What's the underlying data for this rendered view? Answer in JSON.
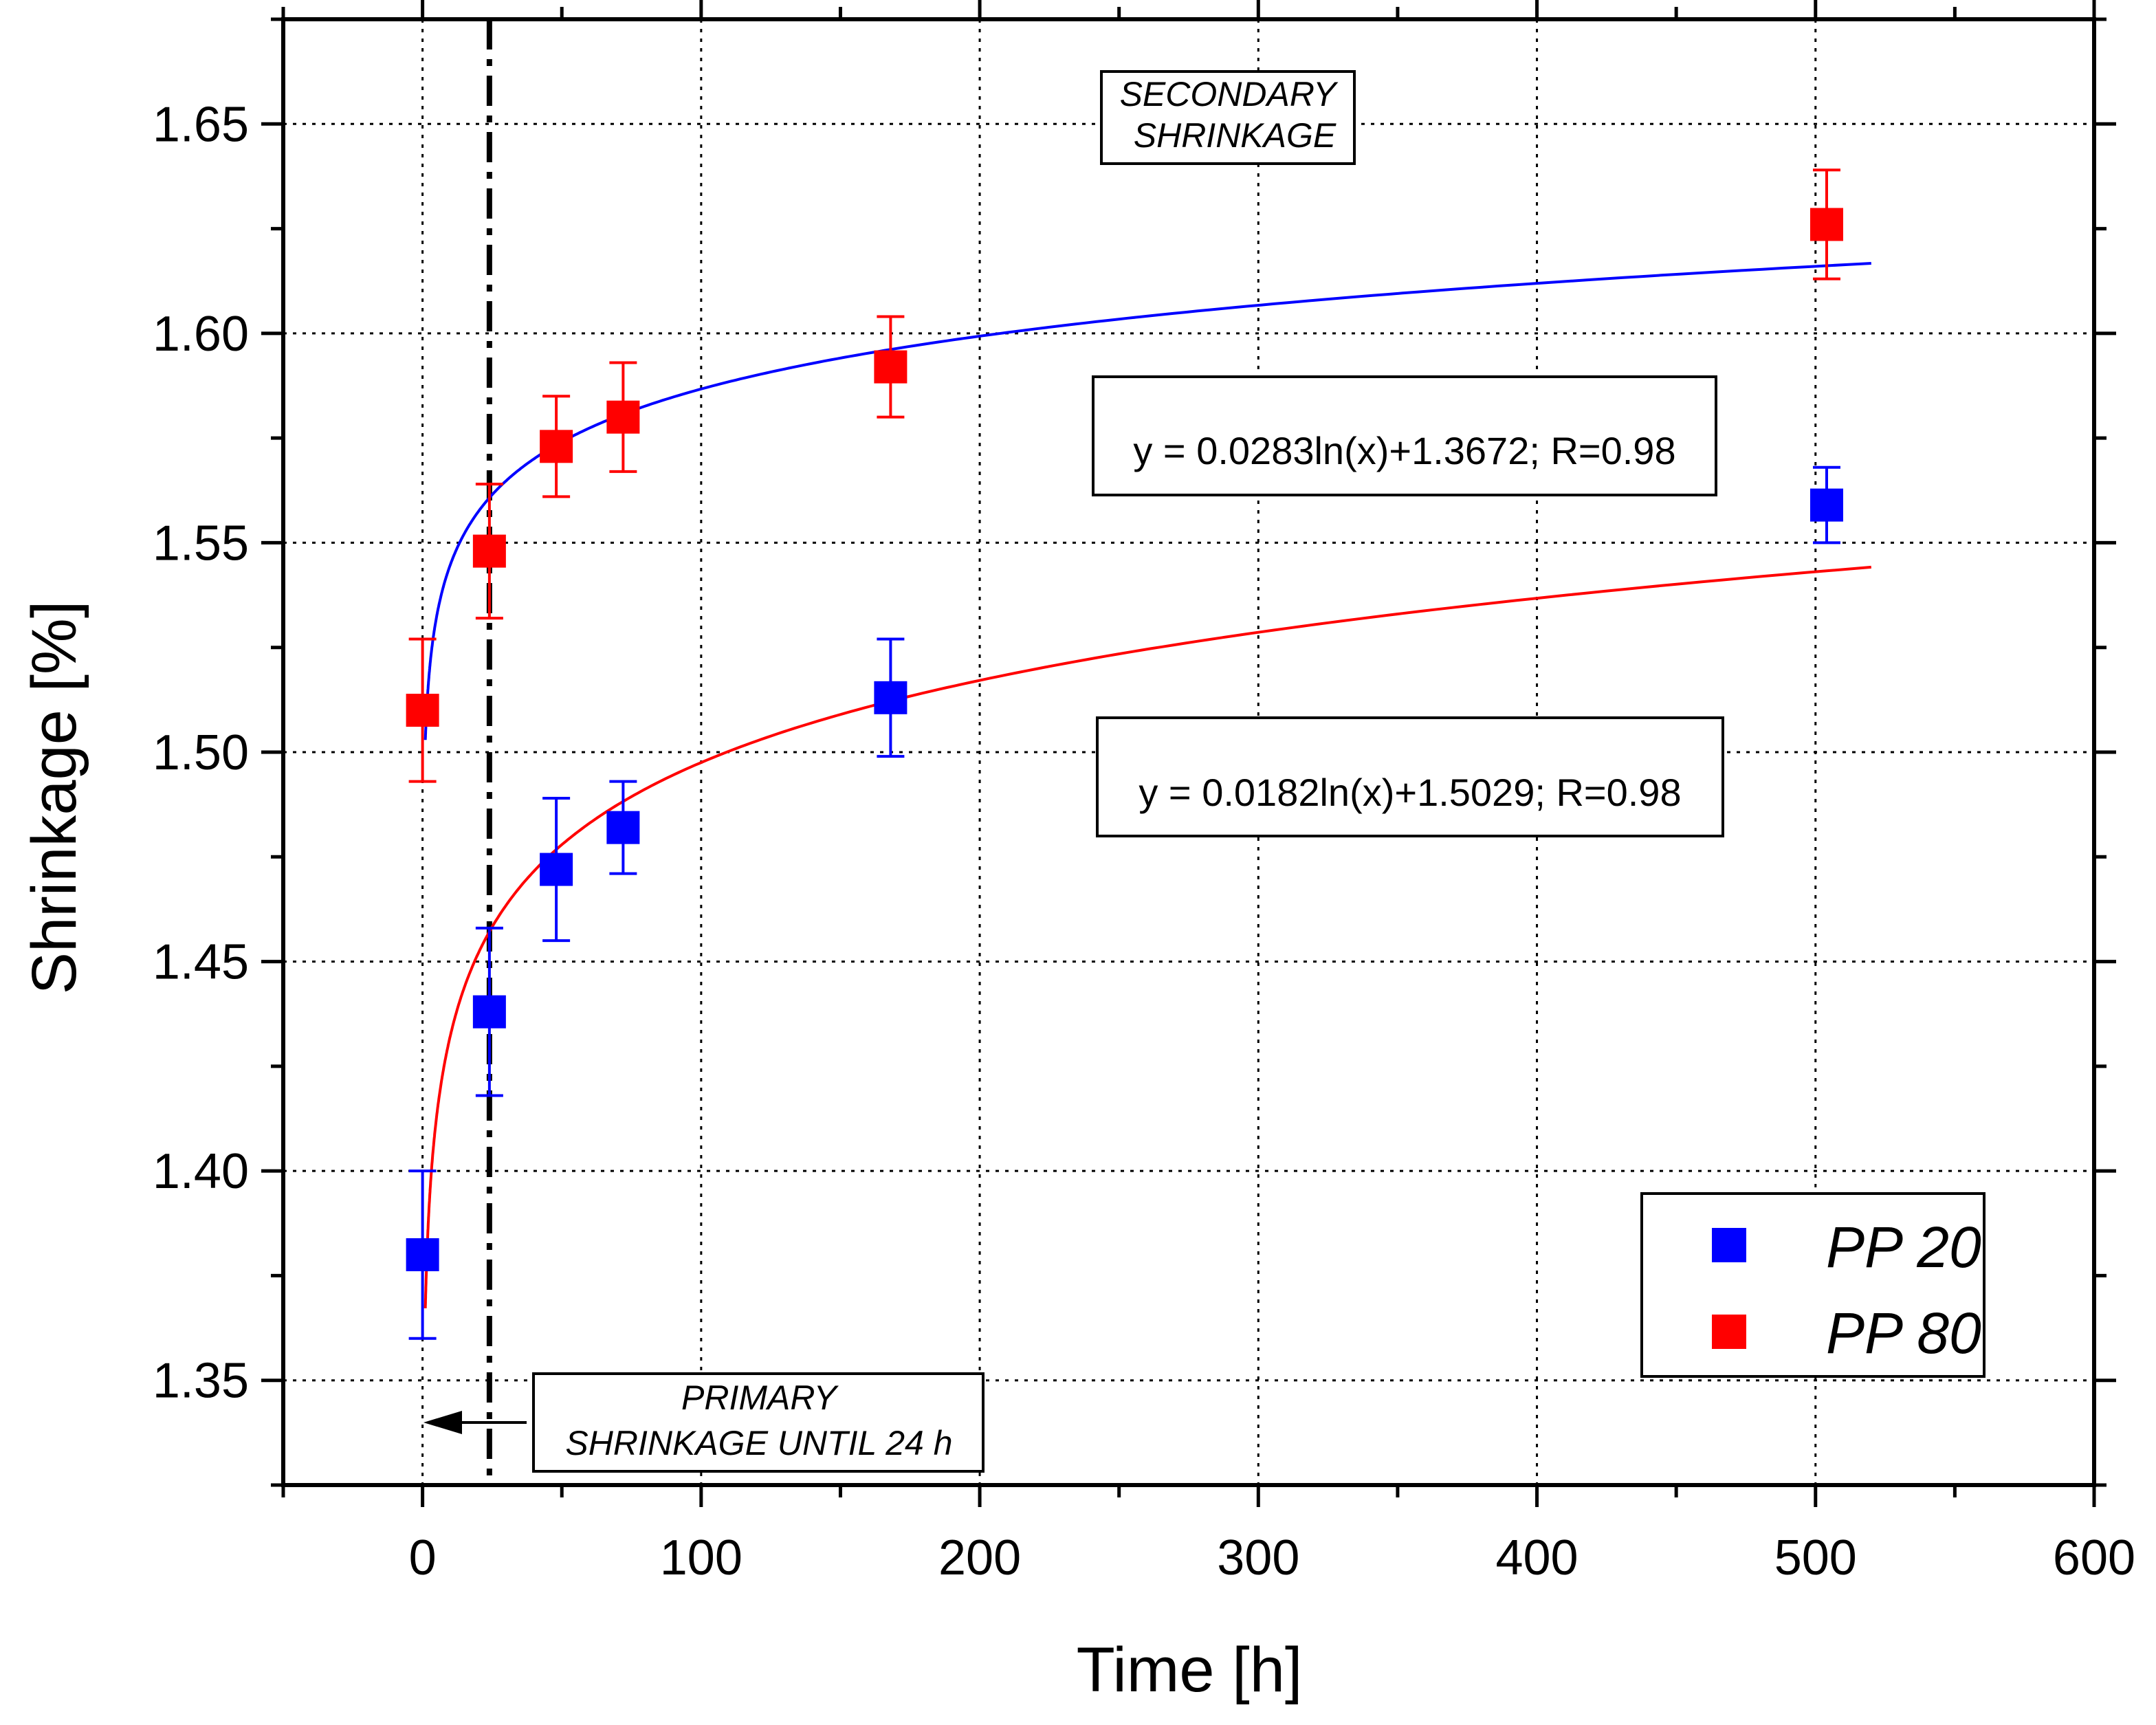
{
  "chart_data": {
    "type": "scatter",
    "xlabel": "Time [h]",
    "ylabel": "Shrinkage [%]",
    "xlim": [
      -50,
      600
    ],
    "ylim": [
      1.325,
      1.675
    ],
    "xticks": [
      0,
      100,
      200,
      300,
      400,
      500,
      600
    ],
    "yticks": [
      1.35,
      1.4,
      1.45,
      1.5,
      1.55,
      1.6,
      1.65
    ],
    "xtick_labels": [
      "0",
      "100",
      "200",
      "300",
      "400",
      "500",
      "600"
    ],
    "ytick_labels": [
      "1.35",
      "1.40",
      "1.45",
      "1.50",
      "1.55",
      "1.60",
      "1.65"
    ],
    "grid": true,
    "legend_position": "bottom-right",
    "series": [
      {
        "name": "PP 20",
        "color": "#0000ff",
        "x": [
          0,
          24,
          48,
          72,
          168,
          504
        ],
        "y": [
          1.38,
          1.438,
          1.472,
          1.482,
          1.513,
          1.559
        ],
        "err": [
          0.02,
          0.02,
          0.017,
          0.011,
          0.014,
          0.009
        ],
        "fit": {
          "a": 0.0182,
          "b": 1.5029,
          "equation": "y = 0.0182ln(x)+1.5029; R=0.98"
        }
      },
      {
        "name": "PP 80",
        "color": "#ff0000",
        "x": [
          0,
          24,
          48,
          72,
          168,
          504
        ],
        "y": [
          1.51,
          1.548,
          1.573,
          1.58,
          1.592,
          1.626
        ],
        "err": [
          0.017,
          0.016,
          0.012,
          0.013,
          0.012,
          0.013
        ],
        "fit": {
          "a": 0.0283,
          "b": 1.3672,
          "equation": "y = 0.0283ln(x)+1.3672; R=0.98"
        }
      }
    ],
    "vline_x": 24,
    "annotations": {
      "secondary": [
        "SECONDARY",
        "SHRINKAGE"
      ],
      "primary": [
        "PRIMARY",
        "SHRINKAGE UNTIL 24 h"
      ]
    }
  }
}
